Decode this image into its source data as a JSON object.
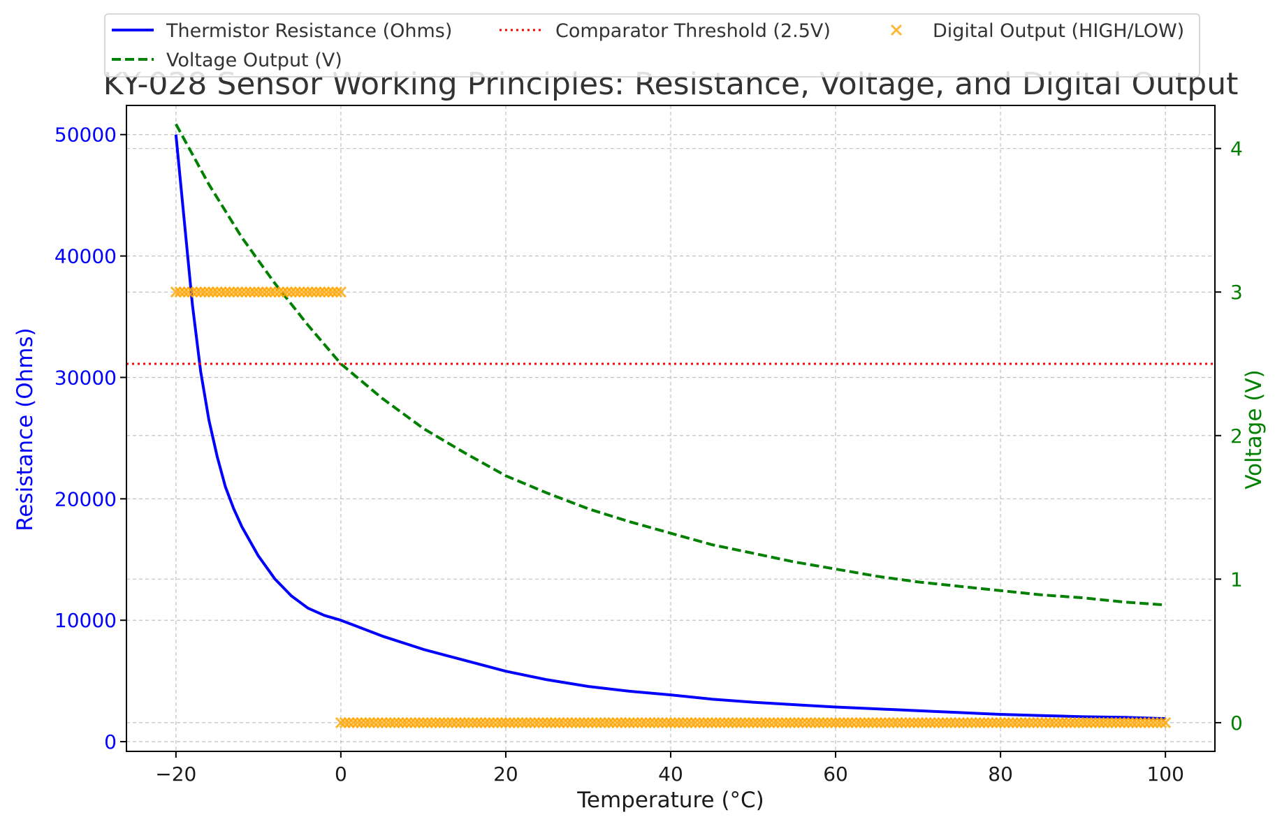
{
  "chart_data": {
    "type": "line",
    "title": "KY-028 Sensor Working Principles: Resistance, Voltage, and Digital Output",
    "xlabel": "Temperature (°C)",
    "ylabel_left": "Resistance (Ohms)",
    "ylabel_right": "Voltage (V)",
    "xlim": [
      -26,
      106
    ],
    "ylim_left": [
      -800,
      52400
    ],
    "ylim_right": [
      -0.2,
      4.3
    ],
    "x_ticks": [
      -20,
      0,
      20,
      40,
      60,
      80,
      100
    ],
    "x_tick_labels": [
      "−20",
      "0",
      "20",
      "40",
      "60",
      "80",
      "100"
    ],
    "y_left_ticks": [
      0,
      10000,
      20000,
      30000,
      40000,
      50000
    ],
    "y_left_tick_labels": [
      "0",
      "10000",
      "20000",
      "30000",
      "40000",
      "50000"
    ],
    "y_right_ticks": [
      0,
      1,
      2,
      3,
      4
    ],
    "y_right_tick_labels": [
      "0",
      "1",
      "2",
      "3",
      "4"
    ],
    "grid": true,
    "legend_position": "top",
    "series": [
      {
        "name": "Thermistor Resistance (Ohms)",
        "axis": "left",
        "style": "solid",
        "color": "#0000ff",
        "x": [
          -20,
          -19,
          -18,
          -17,
          -16,
          -15,
          -14,
          -13,
          -12,
          -10,
          -8,
          -6,
          -4,
          -2,
          0,
          5,
          10,
          15,
          20,
          25,
          30,
          35,
          40,
          45,
          50,
          55,
          60,
          65,
          70,
          75,
          80,
          85,
          90,
          95,
          100
        ],
        "values": [
          50000,
          43000,
          36000,
          30500,
          26500,
          23500,
          21000,
          19200,
          17700,
          15300,
          13400,
          12000,
          11000,
          10400,
          10000,
          8700,
          7600,
          6700,
          5800,
          5100,
          4550,
          4150,
          3850,
          3500,
          3250,
          3050,
          2850,
          2700,
          2550,
          2400,
          2250,
          2150,
          2050,
          2000,
          1900
        ]
      },
      {
        "name": "Voltage Output (V)",
        "axis": "right",
        "style": "dashed",
        "color": "#008000",
        "x": [
          -20,
          -16,
          -12,
          -8,
          -4,
          0,
          5,
          10,
          15,
          20,
          25,
          30,
          35,
          40,
          45,
          50,
          55,
          60,
          65,
          70,
          75,
          80,
          85,
          90,
          95,
          100
        ],
        "values": [
          4.17,
          3.75,
          3.38,
          3.06,
          2.77,
          2.5,
          2.26,
          2.05,
          1.88,
          1.72,
          1.6,
          1.49,
          1.4,
          1.32,
          1.24,
          1.18,
          1.12,
          1.07,
          1.02,
          0.98,
          0.95,
          0.92,
          0.89,
          0.87,
          0.84,
          0.82
        ]
      },
      {
        "name": "Comparator Threshold (2.5V)",
        "axis": "right",
        "style": "dotted",
        "color": "#ff0000",
        "x": [
          -26,
          106
        ],
        "values": [
          2.5,
          2.5
        ]
      },
      {
        "name": "Digital Output (HIGH/LOW)",
        "axis": "right",
        "style": "marker-x",
        "color": "#ffa500",
        "segments": [
          {
            "x_start": -20,
            "x_end": 0,
            "value": 3,
            "state": "HIGH"
          },
          {
            "x_start": 0,
            "x_end": 100,
            "value": 0,
            "state": "LOW"
          }
        ]
      }
    ],
    "legend": [
      {
        "label": "Thermistor Resistance (Ohms)",
        "style": "solid",
        "color": "#0000ff"
      },
      {
        "label": "Comparator Threshold (2.5V)",
        "style": "dotted",
        "color": "#ff0000"
      },
      {
        "label": "Digital Output (HIGH/LOW)",
        "style": "marker-x",
        "color": "#ffa500"
      },
      {
        "label": "Voltage Output (V)",
        "style": "dashed",
        "color": "#008000"
      }
    ],
    "colors": {
      "left_axis": "#0000ff",
      "right_axis": "#008000",
      "grid": "#b0b0b0",
      "text": "#333333"
    }
  }
}
